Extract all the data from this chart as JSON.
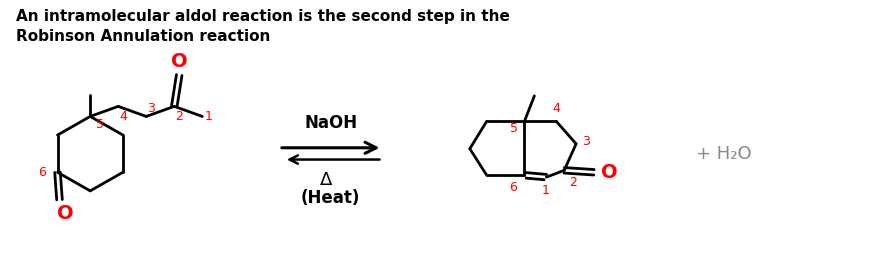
{
  "title_line1": "An intramolecular aldol reaction is the second step in the",
  "title_line2": "Robinson Annulation reaction",
  "title_fontsize": 11,
  "background_color": "#ffffff",
  "black": "#000000",
  "red": "#ff0000",
  "gray": "#888888",
  "arrow_label_top": "NaOH",
  "arrow_label_bottom1": "Δ",
  "arrow_label_bottom2": "(Heat)",
  "h2o_label": "+ H₂O",
  "figsize": [
    8.78,
    2.74
  ],
  "dpi": 100
}
